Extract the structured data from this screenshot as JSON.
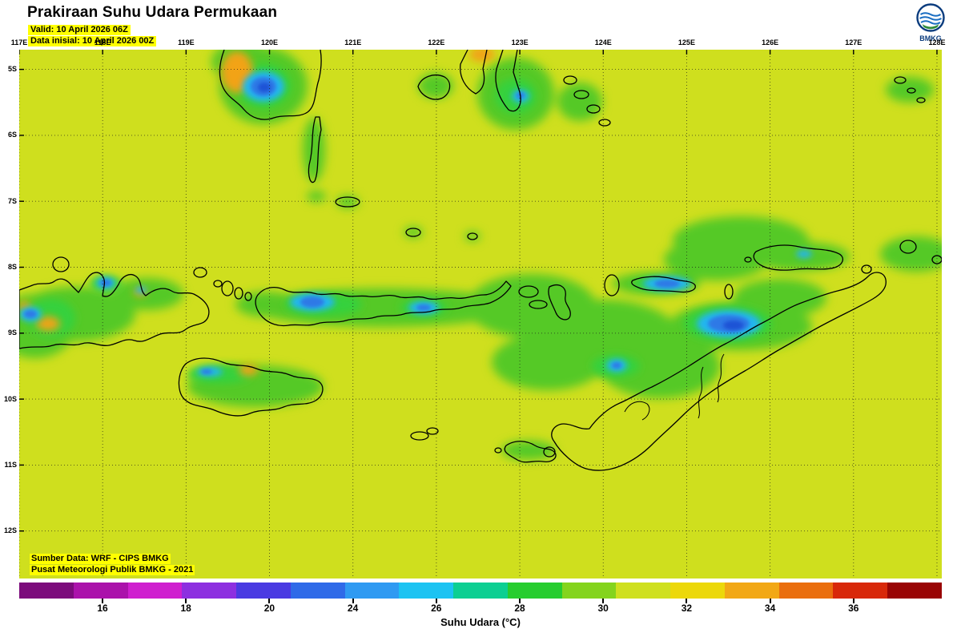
{
  "header": {
    "title": "Prakiraan Suhu Udara Permukaan",
    "valid": "Valid: 10 April 2026 06Z",
    "data_inisial": "Data inisial: 10 April 2026 00Z",
    "agency": "BMKG"
  },
  "map": {
    "lon_labels": [
      "117E",
      "118E",
      "119E",
      "120E",
      "121E",
      "122E",
      "123E",
      "124E",
      "125E",
      "126E",
      "127E",
      "128E"
    ],
    "lat_labels": [
      "5S",
      "6S",
      "7S",
      "8S",
      "9S",
      "10S",
      "11S",
      "12S"
    ],
    "credits": [
      "Sumber Data: WRF - CIPS BMKG",
      "Pusat Meteorologi Publik BMKG - 2021"
    ],
    "colors": {
      "field_background": "#cfdf1e",
      "cool_patch_green": "#55c926",
      "cold_spot_cyan": "#22b6f0",
      "cold_core_blue": "#2e79e6",
      "coldest_core_blue": "#1f52d6",
      "warm_patch_orange": "#f2a312",
      "highlight_yellow": "#ffff00",
      "coastline": "#000000"
    }
  },
  "colorbar": {
    "caption": "Suhu Udara (°C)",
    "tick_labels": [
      "16",
      "18",
      "20",
      "24",
      "26",
      "28",
      "30",
      "32",
      "34",
      "36"
    ],
    "segment_colors": [
      "#7c0b7c",
      "#ab12ab",
      "#cf1fcf",
      "#8d2fe0",
      "#4a3ae2",
      "#2f6ae8",
      "#2f9af2",
      "#1cc3f2",
      "#0ccf92",
      "#27cd2f",
      "#84d41d",
      "#cfe01f",
      "#ecd80a",
      "#f2a816",
      "#ea6e0e",
      "#d8280a",
      "#990404"
    ]
  }
}
